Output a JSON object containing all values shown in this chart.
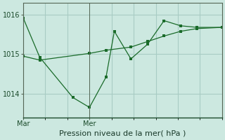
{
  "title": "Pression niveau de la mer( hPa )",
  "bg_color": "#cce8e0",
  "line_color": "#1a6b2a",
  "grid_color": "#a8ccc4",
  "ylim": [
    1013.4,
    1016.3
  ],
  "yticks": [
    1014,
    1015,
    1016
  ],
  "xlim": [
    0,
    72
  ],
  "xtick_positions": [
    0,
    24
  ],
  "xtick_labels": [
    "Mar",
    "Mer"
  ],
  "vline_positions": [
    0,
    24
  ],
  "line1_x": [
    0,
    6,
    18,
    24,
    30,
    33,
    39,
    45,
    51,
    57,
    63,
    72
  ],
  "line1_y": [
    1015.92,
    1014.92,
    1013.9,
    1013.65,
    1014.42,
    1015.58,
    1014.88,
    1015.25,
    1015.85,
    1015.72,
    1015.68,
    1015.68
  ],
  "line2_x": [
    0,
    6,
    24,
    30,
    39,
    45,
    51,
    57,
    63,
    72
  ],
  "line2_y": [
    1014.95,
    1014.85,
    1015.02,
    1015.1,
    1015.18,
    1015.32,
    1015.46,
    1015.58,
    1015.65,
    1015.68
  ],
  "title_fontsize": 8,
  "tick_fontsize": 7
}
